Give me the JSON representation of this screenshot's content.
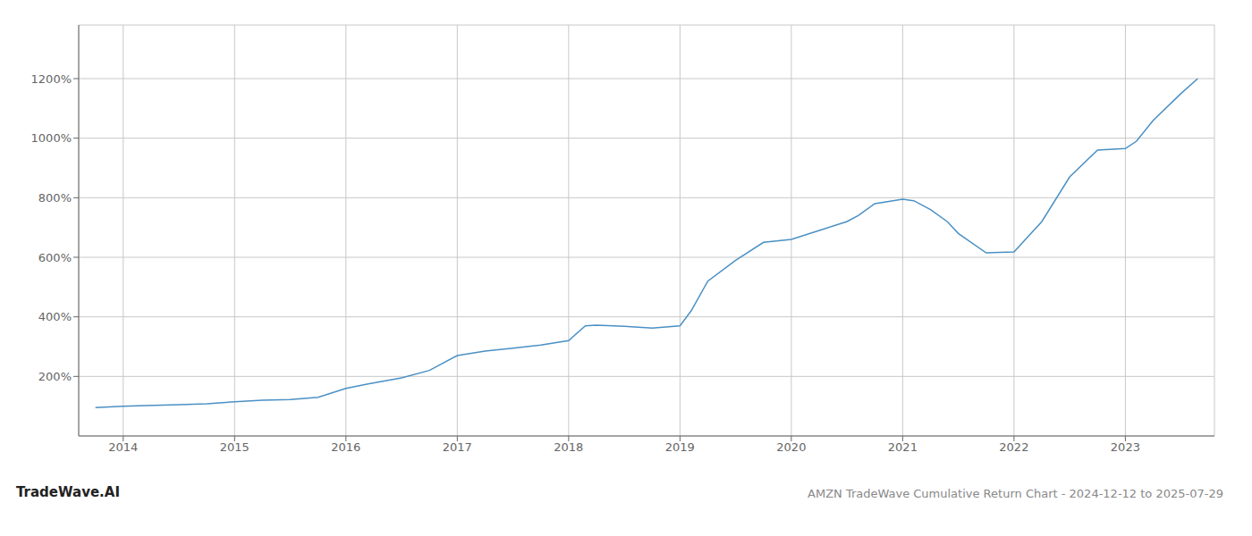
{
  "chart_data": {
    "type": "line",
    "title": "AMZN TradeWave Cumulative Return Chart - 2024-12-12 to 2025-07-29",
    "annotations": [
      "TradeWave.AI"
    ],
    "x": [
      2013.75,
      2014.0,
      2014.2,
      2014.5,
      2014.75,
      2015.0,
      2015.25,
      2015.5,
      2015.75,
      2016.0,
      2016.2,
      2016.5,
      2016.75,
      2017.0,
      2017.25,
      2017.5,
      2017.75,
      2018.0,
      2018.15,
      2018.25,
      2018.5,
      2018.75,
      2019.0,
      2019.1,
      2019.25,
      2019.5,
      2019.75,
      2020.0,
      2020.25,
      2020.5,
      2020.6,
      2020.75,
      2021.0,
      2021.1,
      2021.25,
      2021.4,
      2021.5,
      2021.75,
      2022.0,
      2022.25,
      2022.5,
      2022.75,
      2023.0,
      2023.1,
      2023.25,
      2023.5,
      2023.65
    ],
    "values": [
      95,
      100,
      102,
      105,
      108,
      115,
      120,
      122,
      130,
      160,
      175,
      195,
      220,
      270,
      285,
      295,
      305,
      320,
      370,
      372,
      368,
      362,
      370,
      420,
      520,
      590,
      650,
      660,
      690,
      720,
      740,
      780,
      795,
      790,
      760,
      720,
      680,
      615,
      618,
      720,
      870,
      960,
      965,
      990,
      1060,
      1150,
      1200
    ],
    "color": "#4a90c4",
    "xlim": [
      2013.6,
      2023.8
    ],
    "xticks": [
      2014,
      2015,
      2016,
      2017,
      2018,
      2019,
      2020,
      2021,
      2022,
      2023
    ],
    "ylim": [
      0,
      1380
    ],
    "yticks": [
      {
        "value": 200,
        "label": "200%"
      },
      {
        "value": 400,
        "label": "400%"
      },
      {
        "value": 600,
        "label": "600%"
      },
      {
        "value": 800,
        "label": "800%"
      },
      {
        "value": 1000,
        "label": "1000%"
      },
      {
        "value": 1200,
        "label": "1200%"
      }
    ],
    "grid": true
  }
}
